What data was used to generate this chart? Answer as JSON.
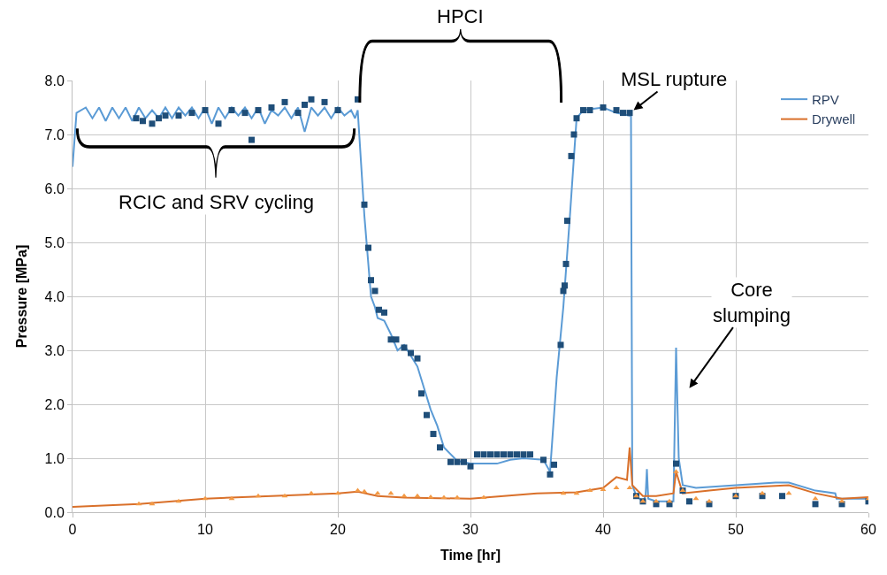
{
  "chart_data": {
    "type": "line",
    "xlabel": "Time [hr]",
    "ylabel": "Pressure [MPa]",
    "xlim": [
      0,
      60
    ],
    "xticks": [
      0,
      10,
      20,
      30,
      40,
      50,
      60
    ],
    "ylim": [
      0,
      8
    ],
    "yticks": [
      {
        "value": 0,
        "label": "0.0"
      },
      {
        "value": 1,
        "label": "1.0"
      },
      {
        "value": 2,
        "label": "2.0"
      },
      {
        "value": 3,
        "label": "3.0"
      },
      {
        "value": 4,
        "label": "4.0"
      },
      {
        "value": 5,
        "label": "5.0"
      },
      {
        "value": 6,
        "label": "6.0"
      },
      {
        "value": 7,
        "label": "7.0"
      },
      {
        "value": 8,
        "label": "8.0"
      }
    ],
    "grid": true,
    "legend": "top right",
    "annotations": [
      "RCIC and SRV cycling",
      "HPCI",
      {
        "text": "MSL rupture",
        "x": 42.3,
        "y": 7.45
      },
      "Core slumping"
    ],
    "series": [
      {
        "name": "RPV",
        "color": "#5b9bd5",
        "marker": "none",
        "x": [
          0,
          0.3,
          1,
          1.5,
          2,
          2.5,
          3,
          3.5,
          4,
          4.5,
          5,
          5.5,
          6,
          6.5,
          7,
          7.5,
          8,
          8.5,
          9,
          9.5,
          10,
          10.5,
          11,
          11.5,
          12,
          12.5,
          13,
          13.5,
          14,
          14.5,
          15,
          15.5,
          16,
          16.5,
          17,
          17.5,
          18,
          18.5,
          19,
          19.5,
          20,
          20.5,
          21,
          21.3,
          21.5,
          22,
          22.5,
          22.8,
          23,
          23.5,
          24,
          24.5,
          25,
          26,
          26.5,
          27,
          27.5,
          28,
          29,
          30,
          32,
          33,
          34,
          35.5,
          36,
          36.5,
          37,
          37.5,
          38,
          38.5,
          40,
          41,
          42,
          42.1,
          42.2,
          42.5,
          43,
          43.2,
          43.3,
          43.4,
          44,
          45.3,
          45.5,
          45.7,
          46,
          47,
          50,
          53,
          54,
          56,
          57.5,
          57.6,
          60
        ],
        "values": [
          6.4,
          7.4,
          7.5,
          7.3,
          7.5,
          7.25,
          7.5,
          7.3,
          7.5,
          7.25,
          7.5,
          7.3,
          7.45,
          7.3,
          7.5,
          7.3,
          7.5,
          7.35,
          7.5,
          7.3,
          7.5,
          7.2,
          7.5,
          7.3,
          7.5,
          7.35,
          7.5,
          7.3,
          7.5,
          7.2,
          7.45,
          7.35,
          7.5,
          7.3,
          7.5,
          7.05,
          7.5,
          7.35,
          7.5,
          7.3,
          7.5,
          7.35,
          7.45,
          7.3,
          7.45,
          5.5,
          4.0,
          3.8,
          3.6,
          3.55,
          3.3,
          3.0,
          3.1,
          2.7,
          2.3,
          1.9,
          1.6,
          1.2,
          0.95,
          0.9,
          0.9,
          0.97,
          1.0,
          0.97,
          0.75,
          2.5,
          3.8,
          5.5,
          7.3,
          7.45,
          7.5,
          7.4,
          7.35,
          7.35,
          0.5,
          0.3,
          0.2,
          0.3,
          0.8,
          0.25,
          0.2,
          0.2,
          3.05,
          1.0,
          0.5,
          0.45,
          0.5,
          0.55,
          0.55,
          0.4,
          0.35,
          0.25,
          0.25
        ]
      },
      {
        "name": "Drywell",
        "color": "#d9702a",
        "marker": "none",
        "x": [
          0,
          5,
          10,
          15,
          20,
          21.5,
          23,
          25,
          30,
          35,
          38,
          40,
          41,
          41.8,
          42,
          42.2,
          43,
          44,
          45.3,
          45.5,
          46,
          48,
          50,
          54,
          56,
          58,
          60
        ],
        "values": [
          0.1,
          0.15,
          0.25,
          0.3,
          0.35,
          0.38,
          0.3,
          0.27,
          0.25,
          0.35,
          0.37,
          0.45,
          0.65,
          0.6,
          1.2,
          0.5,
          0.3,
          0.3,
          0.35,
          0.75,
          0.35,
          0.4,
          0.45,
          0.5,
          0.35,
          0.25,
          0.28
        ]
      },
      {
        "type": "scatter",
        "color": "#1f4e79",
        "marker": "square",
        "x": [
          4.8,
          5.3,
          6,
          6.5,
          7,
          8,
          9,
          10,
          11,
          12,
          13,
          13.5,
          14,
          15,
          16,
          17,
          17.5,
          18,
          19,
          20,
          21.5,
          22,
          22.3,
          22.5,
          22.8,
          23.1,
          23.5,
          24,
          24.4,
          25,
          25.5,
          26,
          26.3,
          26.7,
          27.2,
          27.7,
          28.5,
          29,
          29.5,
          30,
          30.5,
          31,
          31.5,
          32,
          32.5,
          33,
          33.5,
          34,
          34.5,
          35.5,
          36,
          36.3,
          36.8,
          37,
          37.1,
          37.2,
          37.3,
          37.6,
          37.8,
          38,
          38.5,
          39,
          40,
          41,
          41.5,
          42,
          42.5,
          43,
          44,
          45,
          45.5,
          46,
          46.5,
          48,
          50,
          52,
          53.5,
          56,
          58,
          60
        ],
        "values": [
          7.3,
          7.25,
          7.2,
          7.3,
          7.35,
          7.35,
          7.4,
          7.45,
          7.2,
          7.45,
          7.4,
          6.9,
          7.45,
          7.5,
          7.6,
          7.4,
          7.55,
          7.65,
          7.6,
          7.45,
          7.65,
          5.7,
          4.9,
          4.3,
          4.1,
          3.75,
          3.7,
          3.2,
          3.2,
          3.05,
          2.95,
          2.85,
          2.2,
          1.8,
          1.45,
          1.2,
          0.93,
          0.93,
          0.93,
          0.85,
          1.07,
          1.07,
          1.07,
          1.07,
          1.07,
          1.07,
          1.07,
          1.07,
          1.07,
          0.97,
          0.7,
          0.88,
          3.1,
          4.1,
          4.2,
          4.6,
          5.4,
          6.6,
          7.0,
          7.3,
          7.45,
          7.45,
          7.5,
          7.45,
          7.4,
          7.4,
          0.3,
          0.2,
          0.15,
          0.15,
          0.9,
          0.4,
          0.2,
          0.15,
          0.3,
          0.3,
          0.3,
          0.15,
          0.15,
          0.2
        ]
      },
      {
        "type": "scatter",
        "color": "#f39a45",
        "marker": "triangle",
        "x": [
          5,
          6,
          8,
          10,
          12,
          14,
          16,
          18,
          20,
          21.5,
          22,
          23,
          24,
          25,
          26,
          27,
          28,
          29,
          31,
          37,
          38,
          39,
          40,
          41,
          42,
          42.5,
          43,
          44,
          45,
          45.5,
          46,
          47,
          48,
          50,
          52,
          54,
          56,
          58,
          60
        ],
        "values": [
          0.15,
          0.15,
          0.2,
          0.25,
          0.25,
          0.3,
          0.3,
          0.35,
          0.35,
          0.4,
          0.38,
          0.35,
          0.35,
          0.3,
          0.3,
          0.28,
          0.27,
          0.27,
          0.27,
          0.35,
          0.35,
          0.4,
          0.42,
          0.45,
          0.45,
          0.3,
          0.2,
          0.2,
          0.2,
          0.75,
          0.4,
          0.25,
          0.2,
          0.3,
          0.35,
          0.35,
          0.25,
          0.2,
          0.25
        ]
      }
    ]
  }
}
